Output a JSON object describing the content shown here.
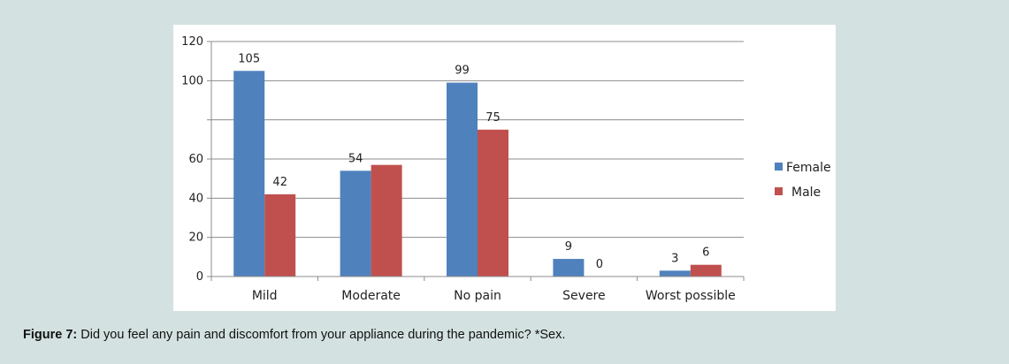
{
  "caption": {
    "label": "Figure 7:",
    "text": "Did you feel any pain and discomfort from your appliance during the pandemic? *Sex."
  },
  "chart_data": {
    "type": "bar",
    "categories": [
      "Mild",
      "Moderate",
      "No pain",
      "Severe",
      "Worst possible"
    ],
    "series": [
      {
        "name": "Female",
        "color": "#4f81bd",
        "values": [
          105,
          54,
          99,
          9,
          3
        ]
      },
      {
        "name": "Male",
        "color": "#c0504d",
        "values": [
          42,
          57,
          75,
          0,
          6
        ]
      }
    ],
    "data_labels": {
      "Female": [
        "105",
        "54",
        "99",
        "9",
        "3"
      ],
      "Male": [
        "42",
        "",
        "75",
        "0",
        "6"
      ]
    },
    "y_ticks": [
      "0",
      "20",
      "40",
      "60",
      "",
      "100",
      "120"
    ],
    "ylim": [
      0,
      120
    ],
    "grid": true,
    "legend_position": "right"
  }
}
